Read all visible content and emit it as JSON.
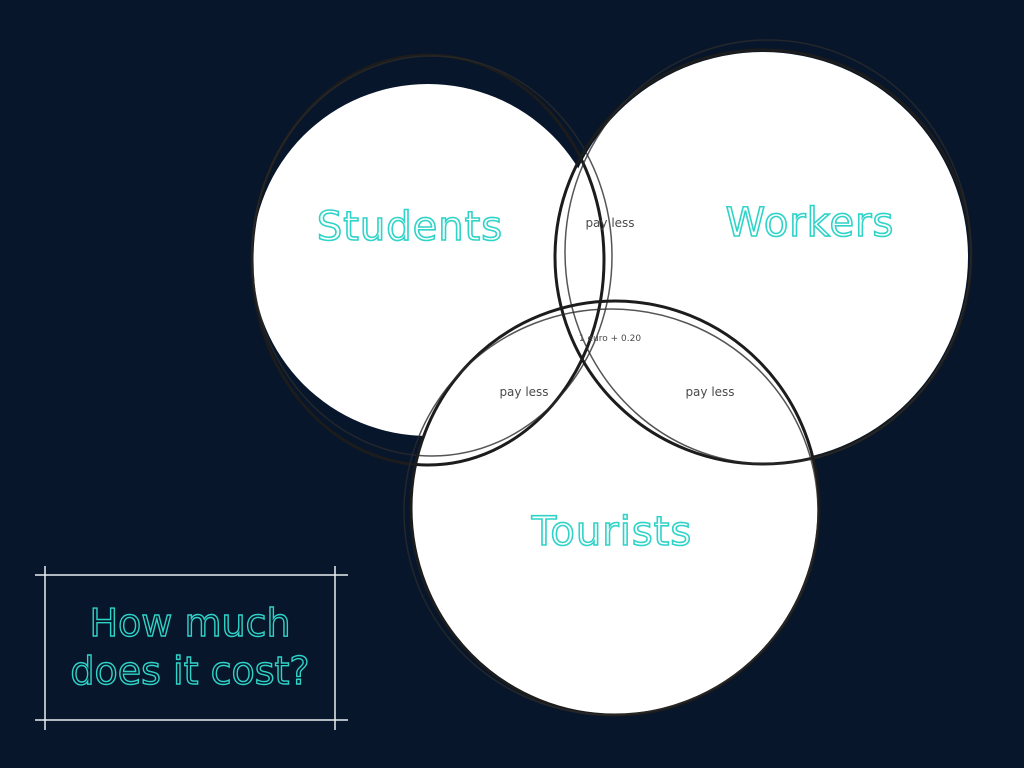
{
  "colors": {
    "background": "#07162a",
    "circle_fill": "#ffffff",
    "circle_outline": "#1c1c1c",
    "set_label": "#2fd3c8",
    "region_label": "#4a4a4a",
    "box_outline": "#e8eef2"
  },
  "venn": {
    "sets": {
      "students": "Students",
      "workers": "Workers",
      "tourists": "Tourists"
    },
    "regions": {
      "students_workers": "pay less",
      "students_tourists": "pay less",
      "workers_tourists": "pay less",
      "all_three": "1 euro + 0.20"
    }
  },
  "question": {
    "line1": "How much",
    "line2": "does it cost?"
  }
}
